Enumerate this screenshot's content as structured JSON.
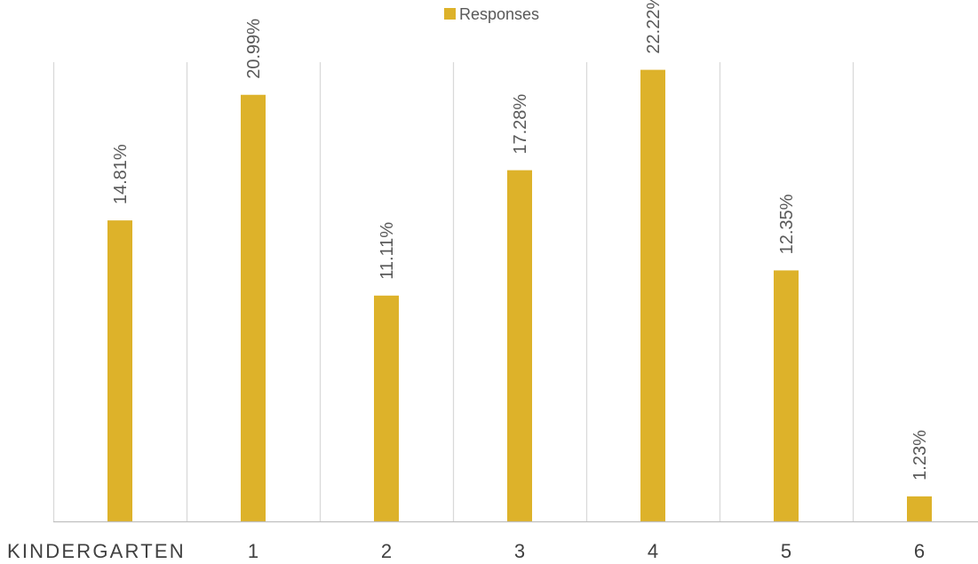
{
  "chart_data": {
    "type": "bar",
    "categories": [
      "KINDERGARTEN",
      "1",
      "2",
      "3",
      "4",
      "5",
      "6"
    ],
    "series": [
      {
        "name": "Responses",
        "values": [
          14.81,
          20.99,
          11.11,
          17.28,
          22.22,
          12.35,
          1.23
        ],
        "labels": [
          "14.81%",
          "20.99%",
          "11.11%",
          "17.28%",
          "22.22%",
          "12.35%",
          "1.23%"
        ]
      }
    ],
    "ylim": [
      0,
      25
    ],
    "grid": "vertical category separators",
    "legend": "top-center",
    "colors": {
      "bar": "#DDB22A",
      "grid": "#D9D9D9",
      "axis": "#BFBFBF",
      "label": "#595959",
      "category_label": "#404040"
    }
  }
}
